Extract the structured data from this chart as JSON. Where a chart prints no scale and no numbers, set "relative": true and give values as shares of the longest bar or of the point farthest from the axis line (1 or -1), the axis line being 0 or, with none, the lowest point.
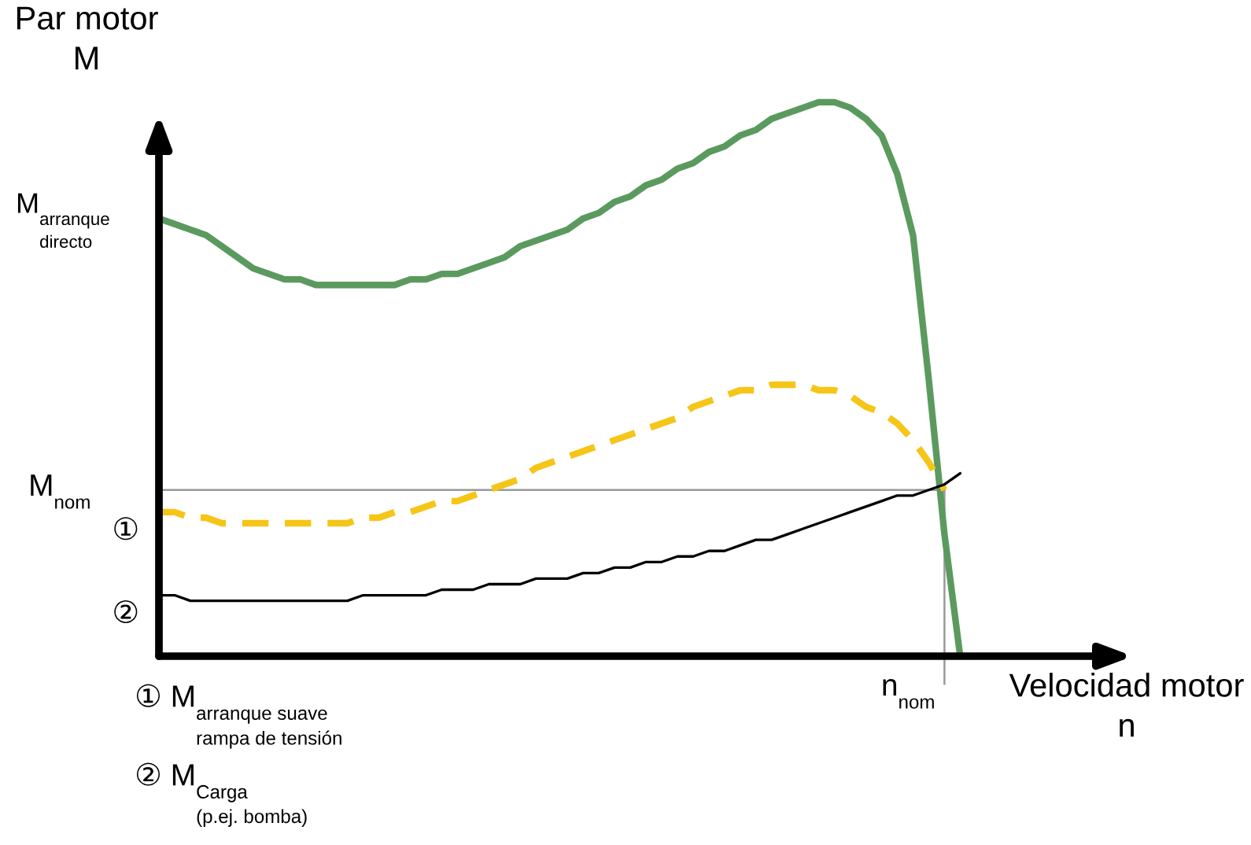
{
  "chart_data": {
    "type": "line",
    "relative": true,
    "xlabel": "Velocidad motor\nn",
    "ylabel": "Par motor\nM",
    "categories": [
      null,
      null,
      null,
      null,
      null,
      null,
      null,
      null,
      null,
      null,
      null,
      null,
      null,
      null,
      null,
      null,
      null,
      null,
      null,
      null,
      null,
      null,
      null,
      null,
      null,
      null,
      null,
      null,
      null,
      null,
      null,
      null,
      null,
      null,
      null,
      null,
      null,
      null,
      null,
      null,
      null,
      null,
      null,
      null,
      null,
      null,
      null,
      null,
      null,
      null,
      null,
      null
    ],
    "series": [
      {
        "name": "M$_{arranque\ndirecto}$",
        "color": "#5b9a5e",
        "line_style": "solid",
        "values": [
          0.79,
          0.78,
          0.77,
          0.76,
          0.74,
          0.72,
          0.7,
          0.69,
          0.68,
          0.68,
          0.67,
          0.67,
          0.67,
          0.67,
          0.67,
          0.67,
          0.68,
          0.68,
          0.69,
          0.69,
          0.7,
          0.71,
          0.72,
          0.74,
          0.75,
          0.76,
          0.77,
          0.79,
          0.8,
          0.82,
          0.83,
          0.85,
          0.86,
          0.88,
          0.89,
          0.91,
          0.92,
          0.94,
          0.95,
          0.97,
          0.98,
          0.99,
          1.0,
          1.0,
          0.99,
          0.97,
          0.94,
          0.87,
          0.76,
          0.5,
          0.22,
          0
        ]
      },
      {
        "name": "①",
        "color": "#f5c518",
        "line_style": "dashed",
        "values": [
          0.26,
          0.26,
          0.25,
          0.25,
          0.24,
          0.24,
          0.24,
          0.24,
          0.24,
          0.24,
          0.24,
          0.24,
          0.24,
          0.25,
          0.25,
          0.26,
          0.26,
          0.27,
          0.28,
          0.28,
          0.29,
          0.3,
          0.31,
          0.32,
          0.34,
          0.35,
          0.36,
          0.37,
          0.38,
          0.39,
          0.4,
          0.41,
          0.42,
          0.43,
          0.45,
          0.46,
          0.47,
          0.48,
          0.48,
          0.49,
          0.49,
          0.49,
          0.48,
          0.48,
          0.47,
          0.45,
          0.44,
          0.42,
          0.39,
          0.35,
          0.3,
          null
        ]
      },
      {
        "name": "②",
        "color": "#000000",
        "line_style": "solid",
        "values": [
          0.11,
          0.11,
          0.1,
          0.1,
          0.1,
          0.1,
          0.1,
          0.1,
          0.1,
          0.1,
          0.1,
          0.1,
          0.1,
          0.11,
          0.11,
          0.11,
          0.11,
          0.11,
          0.12,
          0.12,
          0.12,
          0.13,
          0.13,
          0.13,
          0.14,
          0.14,
          0.14,
          0.15,
          0.15,
          0.16,
          0.16,
          0.17,
          0.17,
          0.18,
          0.18,
          0.19,
          0.19,
          0.2,
          0.21,
          0.21,
          0.22,
          0.23,
          0.24,
          0.25,
          0.26,
          0.27,
          0.28,
          0.29,
          0.29,
          0.3,
          0.31,
          0.33
        ]
      }
    ],
    "ref_lines": [
      {
        "axis": "y",
        "value": 0.3,
        "label": "M$_{nom}$",
        "color": "#999999"
      }
    ],
    "annotations": [
      "n$_{nom}$",
      "① M$_{arranque suave\nrampa de tensión}$",
      "② M$_{Carga\n(p.ej. bomba)}$"
    ]
  }
}
